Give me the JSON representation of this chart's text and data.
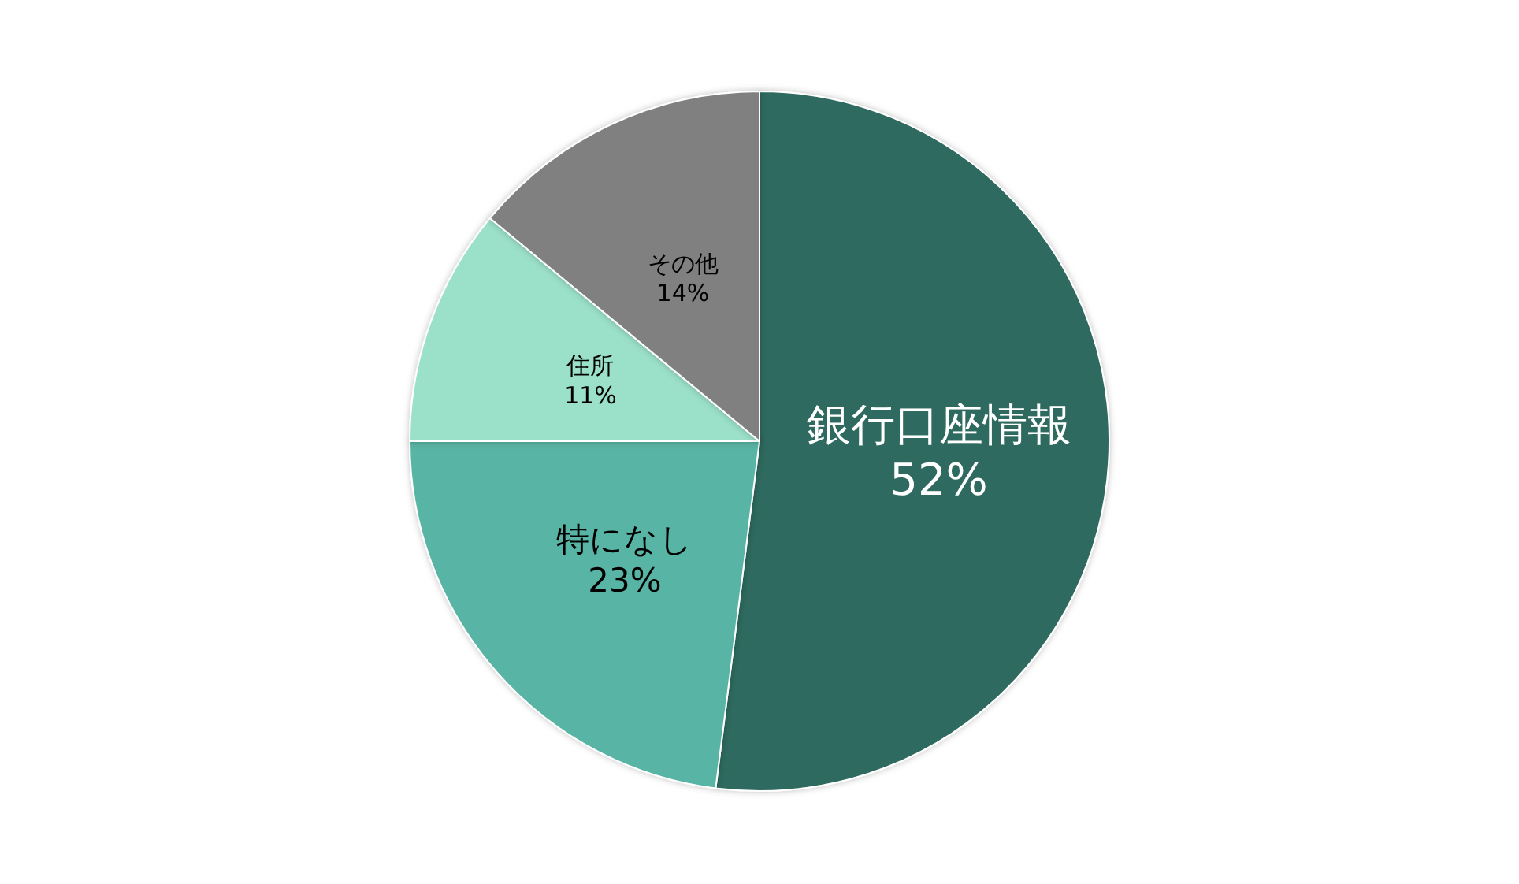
{
  "chart_data": {
    "type": "pie",
    "categories": [
      "銀行口座情報",
      "特になし",
      "住所",
      "その他"
    ],
    "values": [
      52,
      23,
      11,
      14
    ],
    "colors": [
      "#2d6a5e",
      "#58b4a4",
      "#9be0c9",
      "#808080"
    ],
    "value_labels": [
      "52%",
      "23%",
      "11%",
      "14%"
    ]
  }
}
